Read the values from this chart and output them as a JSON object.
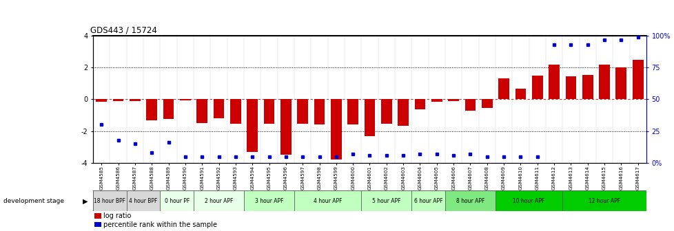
{
  "title": "GDS443 / 15724",
  "samples": [
    "GSM4585",
    "GSM4586",
    "GSM4587",
    "GSM4588",
    "GSM4589",
    "GSM4590",
    "GSM4591",
    "GSM4592",
    "GSM4593",
    "GSM4594",
    "GSM4595",
    "GSM4596",
    "GSM4597",
    "GSM4598",
    "GSM4599",
    "GSM4600",
    "GSM4601",
    "GSM4602",
    "GSM4603",
    "GSM4604",
    "GSM4605",
    "GSM4606",
    "GSM4607",
    "GSM4608",
    "GSM4609",
    "GSM4610",
    "GSM4611",
    "GSM4612",
    "GSM4613",
    "GSM4614",
    "GSM4615",
    "GSM4616",
    "GSM4617"
  ],
  "log_ratios": [
    -0.15,
    -0.1,
    -0.12,
    -1.3,
    -1.25,
    -0.08,
    -1.5,
    -1.2,
    -1.55,
    -3.3,
    -1.55,
    -3.5,
    -1.55,
    -1.6,
    -3.8,
    -1.6,
    -2.3,
    -1.55,
    -1.65,
    -0.65,
    -0.15,
    -0.12,
    -0.7,
    -0.55,
    1.3,
    0.65,
    1.5,
    2.2,
    1.45,
    1.55,
    2.2,
    2.0,
    2.5
  ],
  "percentile_ranks_pct": [
    30,
    18,
    15,
    8,
    16,
    5,
    5,
    5,
    5,
    5,
    5,
    5,
    5,
    5,
    5,
    7,
    6,
    6,
    6,
    7,
    7,
    6,
    7,
    5,
    5,
    5,
    5,
    93,
    93,
    93,
    97,
    97,
    99
  ],
  "stages": [
    {
      "label": "18 hour BPF",
      "start": 0,
      "end": 2,
      "color": "#d8d8d8"
    },
    {
      "label": "4 hour BPF",
      "start": 2,
      "end": 4,
      "color": "#d8d8d8"
    },
    {
      "label": "0 hour PF",
      "start": 4,
      "end": 6,
      "color": "#e8ffe8"
    },
    {
      "label": "2 hour APF",
      "start": 6,
      "end": 9,
      "color": "#e8ffe8"
    },
    {
      "label": "3 hour APF",
      "start": 9,
      "end": 12,
      "color": "#c0ffc0"
    },
    {
      "label": "4 hour APF",
      "start": 12,
      "end": 16,
      "color": "#c0ffc0"
    },
    {
      "label": "5 hour APF",
      "start": 16,
      "end": 19,
      "color": "#c0ffc0"
    },
    {
      "label": "6 hour APF",
      "start": 19,
      "end": 21,
      "color": "#c0ffc0"
    },
    {
      "label": "8 hour APF",
      "start": 21,
      "end": 24,
      "color": "#80e880"
    },
    {
      "label": "10 hour APF",
      "start": 24,
      "end": 28,
      "color": "#00cc00"
    },
    {
      "label": "12 hour APF",
      "start": 28,
      "end": 33,
      "color": "#00cc00"
    }
  ],
  "ylim": [
    -4,
    4
  ],
  "bar_color": "#cc0000",
  "dot_color": "#0000cc",
  "right_axis_labels": [
    "0%",
    "25",
    "50",
    "75",
    "100%"
  ],
  "right_axis_vals": [
    -4,
    -2,
    0,
    2,
    4
  ]
}
